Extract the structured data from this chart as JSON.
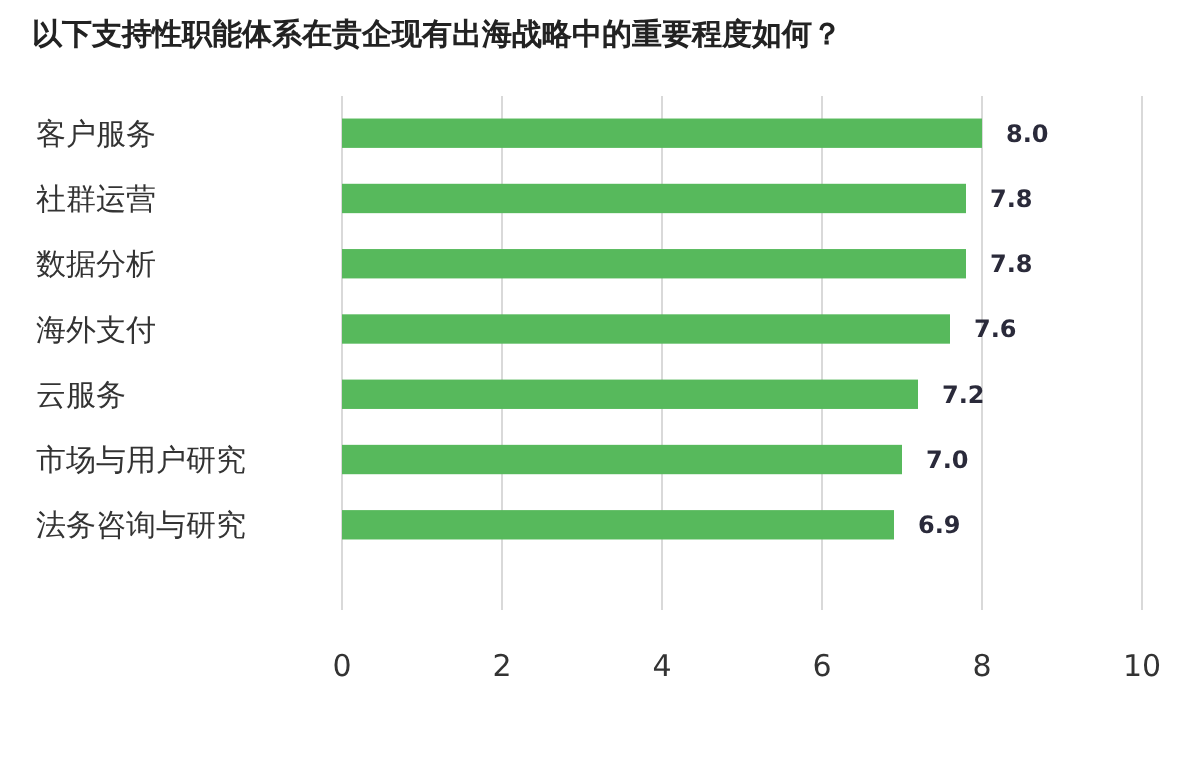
{
  "chart_data": {
    "type": "bar",
    "orientation": "horizontal",
    "title": "以下支持性职能体系在贵企现有出海战略中的重要程度如何？",
    "categories": [
      "客户服务",
      "社群运营",
      "数据分析",
      "海外支付",
      "云服务",
      "市场与用户研究",
      "法务咨询与研究"
    ],
    "values": [
      8.0,
      7.8,
      7.8,
      7.6,
      7.2,
      7.0,
      6.9
    ],
    "value_labels": [
      "8.0",
      "7.8",
      "7.8",
      "7.6",
      "7.2",
      "7.0",
      "6.9"
    ],
    "color": "#57b95c",
    "xlim": [
      0,
      10
    ],
    "xticks": [
      0,
      2,
      4,
      6,
      8,
      10
    ],
    "grid": "x"
  }
}
